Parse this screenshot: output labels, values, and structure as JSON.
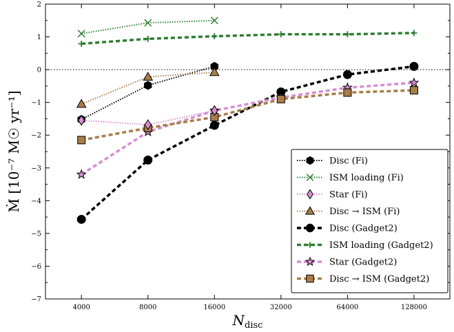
{
  "chart_data": {
    "type": "line",
    "xlabel_main": "N",
    "xlabel_sub": "disc",
    "ylabel": "Ṁ [10⁻⁷ M☉ yr⁻¹]",
    "x_scale": "log2",
    "x_ticks": [
      4000,
      8000,
      16000,
      32000,
      64000,
      128000
    ],
    "x_tick_labels": [
      "4000",
      "8000",
      "16000",
      "32000",
      "64000",
      "128000"
    ],
    "xlim": [
      2750,
      186000
    ],
    "ylim": [
      -7,
      2
    ],
    "y_ticks": [
      -7,
      -6,
      -5,
      -4,
      -3,
      -2,
      -1,
      0,
      1,
      2
    ],
    "y_tick_labels": [
      "−7",
      "−6",
      "−5",
      "−4",
      "−3",
      "−2",
      "−1",
      "0",
      "1",
      "2"
    ],
    "reference_line": 0,
    "legend_position": "lower-right",
    "series": [
      {
        "name": "Disc (Fi)",
        "color": "#000000",
        "linestyle": "dotted",
        "marker": "hexagon",
        "x": [
          4000,
          8000,
          16000
        ],
        "y": [
          -1.52,
          -0.48,
          0.1
        ]
      },
      {
        "name": "ISM loading (Fi)",
        "color": "#2e7d32",
        "linestyle": "dotted",
        "marker": "x",
        "x": [
          4000,
          8000,
          16000
        ],
        "y": [
          1.1,
          1.43,
          1.5
        ]
      },
      {
        "name": "Star (Fi)",
        "color": "#d78ecf",
        "linestyle": "dotted",
        "marker": "diamond",
        "x": [
          4000,
          8000,
          16000
        ],
        "y": [
          -1.55,
          -1.68,
          -1.25
        ]
      },
      {
        "name": "Disc → ISM (Fi)",
        "color": "#a77d4a",
        "linestyle": "dotted",
        "marker": "triangle",
        "x": [
          4000,
          8000,
          16000
        ],
        "y": [
          -1.05,
          -0.22,
          -0.08
        ]
      },
      {
        "name": "Disc (Gadget2)",
        "color": "#000000",
        "linestyle": "dashed",
        "marker": "circle",
        "x": [
          4000,
          8000,
          16000,
          32000,
          64000,
          128000
        ],
        "y": [
          -4.57,
          -2.76,
          -1.7,
          -0.68,
          -0.15,
          0.1
        ]
      },
      {
        "name": "ISM loading (Gadget2)",
        "color": "#2e7d32",
        "linestyle": "dashed",
        "marker": "plus",
        "x": [
          4000,
          8000,
          16000,
          32000,
          64000,
          128000
        ],
        "y": [
          0.79,
          0.94,
          1.02,
          1.08,
          1.08,
          1.12
        ]
      },
      {
        "name": "Star (Gadget2)",
        "color": "#d78ecf",
        "linestyle": "dashed",
        "marker": "star",
        "x": [
          4000,
          8000,
          16000,
          32000,
          64000,
          128000
        ],
        "y": [
          -3.2,
          -1.9,
          -1.25,
          -0.85,
          -0.55,
          -0.4
        ]
      },
      {
        "name": "Disc → ISM (Gadget2)",
        "color": "#a77d4a",
        "linestyle": "dashed",
        "marker": "square",
        "x": [
          4000,
          8000,
          16000,
          32000,
          64000,
          128000
        ],
        "y": [
          -2.15,
          -1.78,
          -1.45,
          -0.9,
          -0.7,
          -0.63
        ]
      }
    ]
  }
}
